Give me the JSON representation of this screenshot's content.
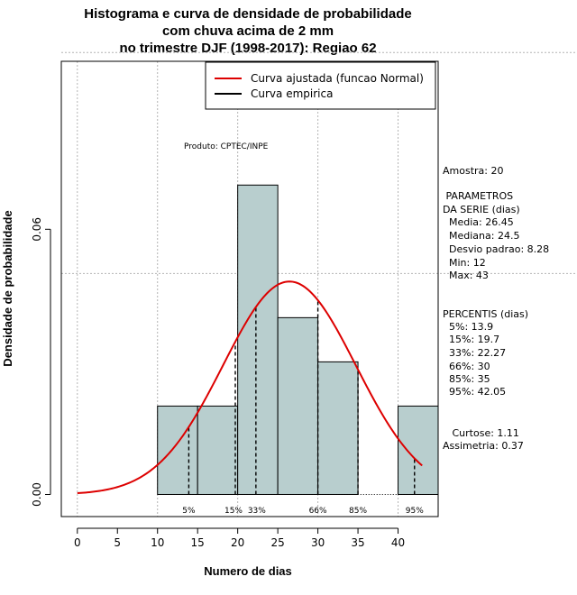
{
  "chart_data": {
    "type": "bar",
    "title_lines": [
      "Histograma e curva de densidade de probabilidade",
      "com chuva acima de 2 mm",
      "no trimestre DJF (1998-2017): Regiao 62"
    ],
    "xlabel": "Numero de dias",
    "ylabel": "Densidade de probabilidade",
    "xlim": [
      -2,
      45
    ],
    "ylim": [
      -0.005,
      0.098
    ],
    "x_ticks": [
      0,
      5,
      10,
      15,
      20,
      25,
      30,
      35,
      40
    ],
    "y_ticks": [
      0.0,
      0.06
    ],
    "y_tick_labels": [
      "0.00",
      "0.06"
    ],
    "x_grid": [
      0,
      10,
      20,
      30,
      40
    ],
    "y_grid": [
      0.05,
      0.1
    ],
    "bins": [
      {
        "start": 10,
        "end": 15,
        "density": 0.02
      },
      {
        "start": 15,
        "end": 20,
        "density": 0.02
      },
      {
        "start": 20,
        "end": 25,
        "density": 0.07
      },
      {
        "start": 25,
        "end": 30,
        "density": 0.04
      },
      {
        "start": 30,
        "end": 35,
        "density": 0.03
      },
      {
        "start": 35,
        "end": 40,
        "density": 0.0
      },
      {
        "start": 40,
        "end": 45,
        "density": 0.02
      }
    ],
    "bar_color": "#b8cece",
    "normal_curve": {
      "mean": 26.45,
      "sd": 8.28,
      "from": 0,
      "to": 43,
      "color": "#dd0000"
    },
    "percentile_lines": [
      {
        "label": "5%",
        "x": 13.9
      },
      {
        "label": "15%",
        "x": 19.7
      },
      {
        "label": "33%",
        "x": 22.27
      },
      {
        "label": "66%",
        "x": 30
      },
      {
        "label": "85%",
        "x": 35
      },
      {
        "label": "95%",
        "x": 42.05
      }
    ],
    "legend": [
      {
        "label": "Curva ajustada (funcao Normal)",
        "color": "#dd0000"
      },
      {
        "label": "Curva empirica",
        "color": "#000000"
      }
    ],
    "legend_position": "top-right",
    "annotation": "Produto: CPTEC/INPE",
    "side_text": [
      "Amostra: 20",
      " PARAMETROS",
      "DA SERIE (dias)",
      "  Media: 26.45",
      "  Mediana: 24.5",
      "  Desvio padrao: 8.28",
      "  Min: 12",
      "  Max: 43",
      "PERCENTIS (dias)",
      "  5%: 13.9",
      "  15%: 19.7",
      "  33%: 22.27",
      "  66%: 30",
      "  85%: 35",
      "  95%: 42.05",
      "   Curtose: 1.11",
      "Assimetria: 0.37"
    ]
  }
}
